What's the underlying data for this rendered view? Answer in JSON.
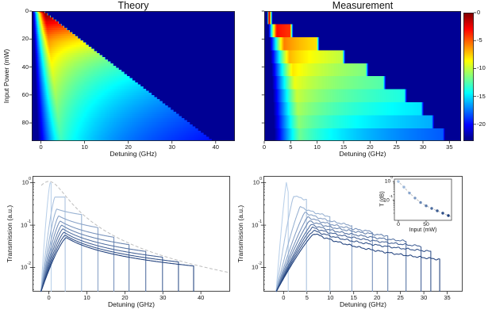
{
  "figure": {
    "background": "#ffffff",
    "text_color": "#1a1a1a",
    "panel_titles": [
      "Theory",
      "Measurement"
    ]
  },
  "chart_data": [
    {
      "id": "theory_heatmap",
      "type": "heatmap",
      "title": "Theory",
      "xlabel": "Detuning (GHz)",
      "ylabel": "Input Power (mW)",
      "xlim": [
        -2.1,
        44.4
      ],
      "ylim_power_mW": [
        0,
        93
      ],
      "xticks": [
        0,
        10,
        20,
        30,
        40
      ],
      "yticks": [
        0,
        20,
        40,
        60,
        80
      ],
      "value": "transmission_dB",
      "clim_dB": [
        -23,
        0
      ],
      "colormap": "jet",
      "model": {
        "powers_mW": [
          1,
          11,
          21,
          31,
          41,
          51,
          61,
          71,
          81,
          91
        ],
        "peak_transmission": [
          1.0,
          0.46,
          0.24,
          0.165,
          0.125,
          0.1,
          0.082,
          0.068,
          0.058,
          0.051
        ],
        "cliff_GHz_offset": 0.5,
        "cliff_GHz_per_mW": 0.418,
        "peak_detuning_offset_GHz": 1.0,
        "peak_detuning_per_mW": 0.04,
        "lorentzian_halfwidth_GHz": 4,
        "rise_onset_GHz": -2.1,
        "floor_T": 0.0024,
        "power_step_mW": 1.5
      }
    },
    {
      "id": "measurement_heatmap",
      "type": "heatmap",
      "title": "Measurement",
      "xlabel": "Detuning (GHz)",
      "xlim": [
        0,
        37.2
      ],
      "ylim_power_mW": [
        0,
        93
      ],
      "xticks": [
        0,
        5,
        10,
        15,
        20,
        25,
        30,
        35
      ],
      "yticks": [
        0,
        20,
        40,
        60,
        80
      ],
      "clim_dB": [
        -23,
        0
      ],
      "colormap": "jet",
      "bands": {
        "peak_transmission": [
          1.0,
          0.5,
          0.27,
          0.2,
          0.155,
          0.125,
          0.103,
          0.088,
          0.075,
          0.064
        ],
        "cliff_GHz": [
          1.0,
          4.9,
          9.9,
          14.8,
          19.2,
          22.5,
          26.5,
          29.7,
          31.7,
          33.8
        ],
        "end_transmission": [
          0.6,
          0.4,
          0.16,
          0.098,
          0.07,
          0.056,
          0.042,
          0.032,
          0.024,
          0.0155
        ],
        "peak_detuning_GHz": [
          0.9,
          2.4,
          3.8,
          4.8,
          5.4,
          5.8,
          6.2,
          6.4,
          6.6,
          6.8
        ],
        "rise_onset_GHz": 0.55,
        "floor_T": 0.0024
      },
      "colorbar_ticks_dB": [
        0,
        -5,
        -10,
        -15,
        -20
      ]
    },
    {
      "id": "theory_spectra",
      "type": "line",
      "xlabel": "Detuning (GHz)",
      "ylabel": "Transmission (a.u.)",
      "xlim": [
        -4.3,
        47.7
      ],
      "ylim": [
        0.0027,
        1.45
      ],
      "xticks": [
        0,
        10,
        20,
        30,
        40
      ],
      "ytick_exponents": [
        0,
        -1,
        -2
      ],
      "yscale": "log",
      "envelope": {
        "peak": 1.08,
        "halfwidth_GHz": 4,
        "style": "dashed-gray",
        "color": "#bdbdbd"
      },
      "series": {
        "powers_mW": [
          1,
          11,
          21,
          31,
          41,
          51,
          61,
          71,
          81,
          91
        ],
        "peak_transmission": [
          1.0,
          0.46,
          0.24,
          0.165,
          0.125,
          0.1,
          0.082,
          0.068,
          0.058,
          0.051
        ],
        "cliff_GHz": [
          0.6,
          4.3,
          8.6,
          12.9,
          17.1,
          21.1,
          25.5,
          29.9,
          34.1,
          38.1
        ],
        "peak_detuning_GHz": [
          0.35,
          1.6,
          2.1,
          2.6,
          3.0,
          3.4,
          3.7,
          4.0,
          4.3,
          4.6
        ],
        "rise_onset_GHz": -2.1
      },
      "line_color_ramp": [
        "#b9d0ea",
        "#1d3e7b"
      ]
    },
    {
      "id": "measurement_spectra",
      "type": "line",
      "xlabel": "Detuning (GHz)",
      "ylabel": "Transmission (a.u.)",
      "xlim": [
        -4.3,
        38.3
      ],
      "ylim": [
        0.0027,
        1.45
      ],
      "xticks": [
        0,
        5,
        10,
        15,
        20,
        25,
        30,
        35
      ],
      "ytick_exponents": [
        0,
        -1,
        -2
      ],
      "yscale": "log",
      "series": {
        "peak_transmission": [
          1.0,
          0.5,
          0.27,
          0.2,
          0.155,
          0.125,
          0.103,
          0.088,
          0.075,
          0.064
        ],
        "cliff_GHz": [
          1.0,
          4.9,
          9.9,
          14.6,
          19.0,
          22.3,
          26.2,
          29.4,
          31.5,
          33.4
        ],
        "end_transmission": [
          0.6,
          0.4,
          0.16,
          0.098,
          0.07,
          0.056,
          0.042,
          0.032,
          0.024,
          0.0155
        ],
        "peak_detuning_GHz": [
          0.6,
          2.2,
          3.6,
          4.6,
          5.2,
          5.6,
          6.0,
          6.2,
          6.4,
          6.6
        ],
        "rise_onset_GHz": -1.6
      },
      "line_color_ramp": [
        "#b9d0ea",
        "#1d3e7b"
      ]
    },
    {
      "id": "inset_peak_transmission",
      "type": "scatter",
      "xlabel": "Input (mW)",
      "ylabel": "T (dB)",
      "xticks": [
        0,
        50
      ],
      "ytick_exponents": [
        0,
        -1
      ],
      "yscale": "log",
      "x_input_mW": [
        0,
        10,
        20,
        30,
        40,
        50,
        60,
        70,
        80,
        90
      ],
      "T": [
        1.0,
        0.5,
        0.24,
        0.13,
        0.075,
        0.05,
        0.036,
        0.027,
        0.02,
        0.015
      ],
      "fit_style": "dashed-gray",
      "fit_color": "#bdbdbd",
      "point_color_ramp": [
        "#a8c4e4",
        "#1d3e7b"
      ]
    }
  ]
}
